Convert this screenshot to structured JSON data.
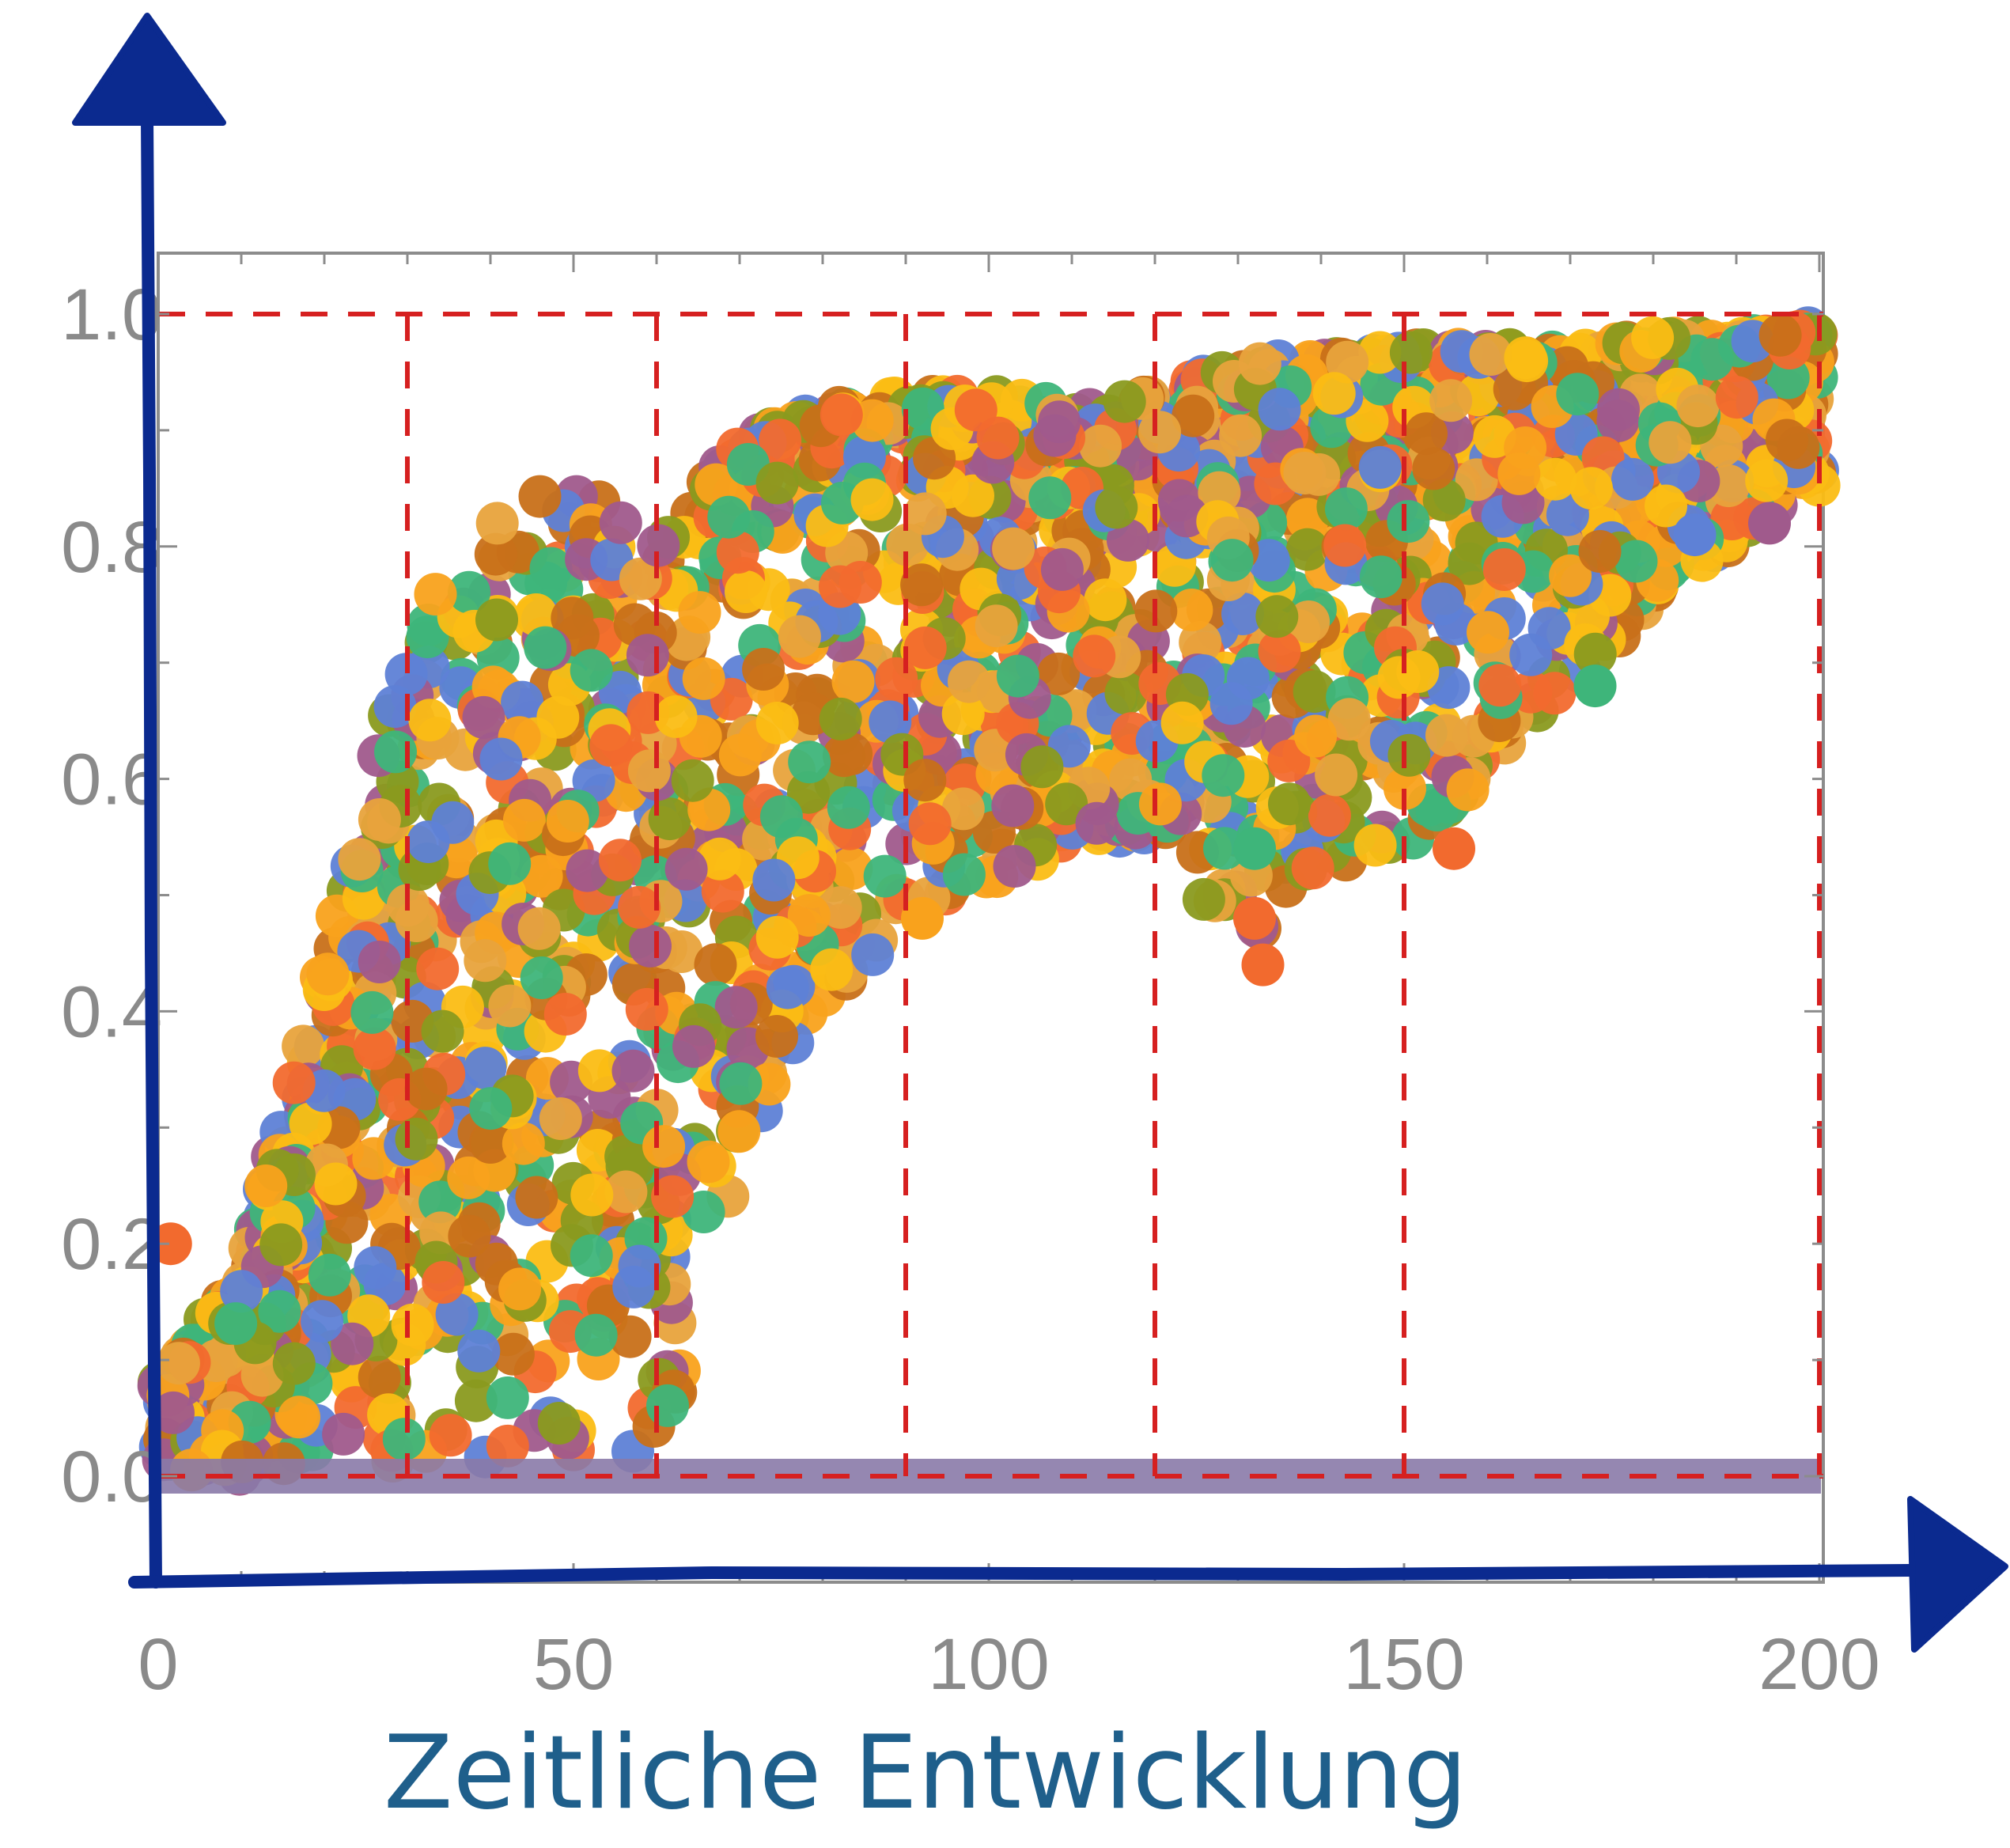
{
  "chart_data": {
    "type": "scatter",
    "title": "",
    "xlabel": "Zeitliche Entwicklung",
    "ylabel": "",
    "xlim": [
      0,
      200
    ],
    "ylim": [
      -0.1,
      1.05
    ],
    "x_ticks": [
      "0",
      "50",
      "100",
      "150",
      "200"
    ],
    "y_ticks": [
      "0.0",
      "0.2",
      "0.4",
      "0.6",
      "0.8",
      "1.0"
    ],
    "grid": false,
    "legend": "none",
    "reference_lines": {
      "horizontal_y": [
        0.0,
        1.0
      ],
      "vertical_x": [
        30,
        60,
        90,
        120,
        150,
        200
      ],
      "color": "#d62020",
      "style": "dashed"
    },
    "baseline_band": {
      "y": 0.0,
      "color": "#8a7aa8"
    },
    "series_colors": [
      "#5e81d6",
      "#f26a2e",
      "#f9a21c",
      "#fbbd14",
      "#c87019",
      "#e8a33c",
      "#8a9a1f",
      "#3eb57a",
      "#a05a8c"
    ],
    "envelope": {
      "x": [
        0,
        10,
        20,
        30,
        40,
        50,
        60,
        70,
        80,
        90,
        100,
        110,
        120,
        130,
        140,
        150,
        160,
        170,
        180,
        190,
        200
      ],
      "upper": [
        0.08,
        0.18,
        0.45,
        0.74,
        0.82,
        0.86,
        0.8,
        0.89,
        0.92,
        0.93,
        0.93,
        0.92,
        0.93,
        0.96,
        0.96,
        0.97,
        0.97,
        0.97,
        0.98,
        0.98,
        0.99
      ],
      "lower": [
        0.0,
        0.0,
        0.0,
        0.0,
        0.0,
        0.0,
        0.0,
        0.28,
        0.4,
        0.48,
        0.5,
        0.55,
        0.55,
        0.45,
        0.53,
        0.53,
        0.6,
        0.68,
        0.75,
        0.8,
        0.85
      ]
    },
    "outlier_points": [
      {
        "x": 1.5,
        "y": 0.2,
        "color": "#f26a2e"
      },
      {
        "x": 92,
        "y": 0.48,
        "color": "#f9a21c"
      },
      {
        "x": 132,
        "y": 0.48,
        "color": "#f26a2e"
      },
      {
        "x": 133,
        "y": 0.44,
        "color": "#f26a2e"
      },
      {
        "x": 132,
        "y": 0.54,
        "color": "#3eb57a"
      },
      {
        "x": 156,
        "y": 0.54,
        "color": "#f26a2e"
      },
      {
        "x": 173,
        "y": 0.68,
        "color": "#3eb57a"
      },
      {
        "x": 185,
        "y": 0.81,
        "color": "#5e81d6"
      },
      {
        "x": 194,
        "y": 0.82,
        "color": "#a05a8c"
      }
    ],
    "axis_color": "#0b2a8f"
  }
}
